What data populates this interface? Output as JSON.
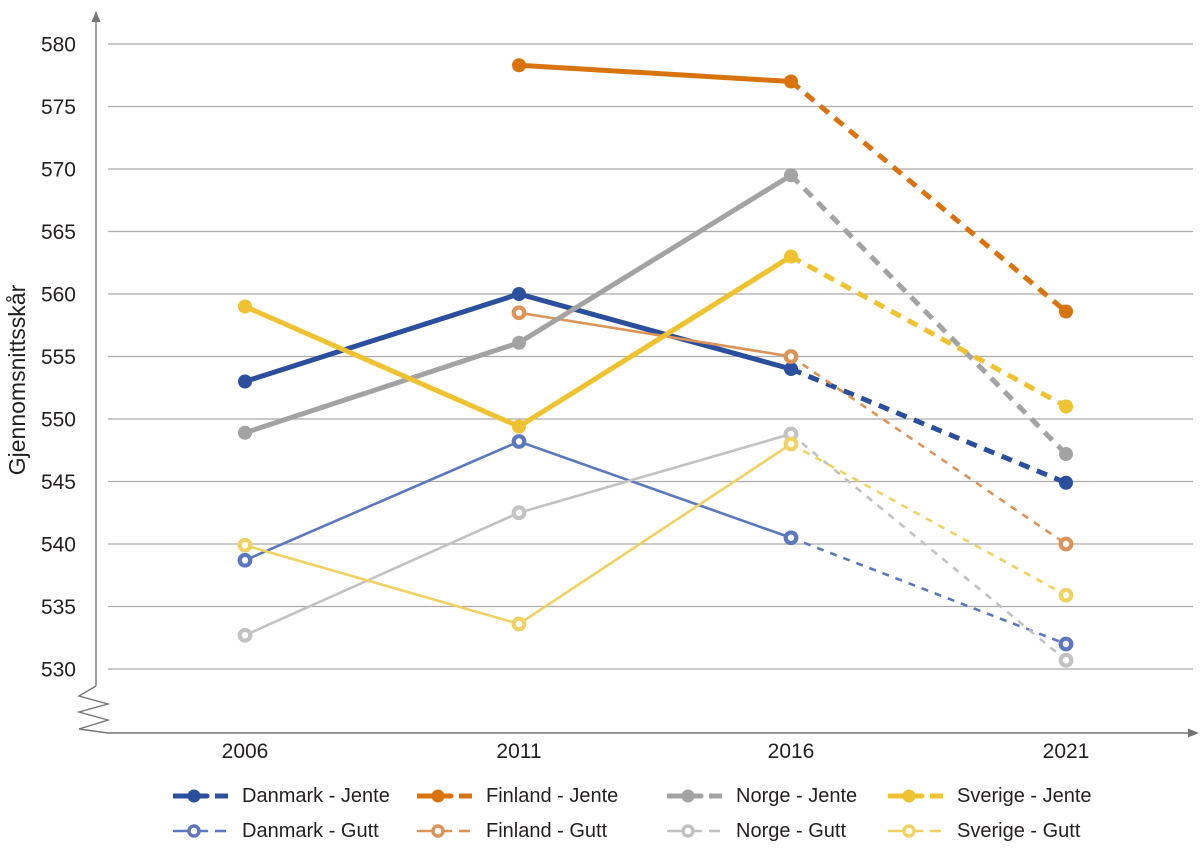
{
  "chart_data": {
    "type": "line",
    "ylabel": "Gjennomsnittsskår",
    "xlabel": "",
    "x": [
      "2006",
      "2011",
      "2016",
      "2021"
    ],
    "ylim": [
      530,
      580
    ],
    "yticks": [
      580,
      575,
      570,
      565,
      560,
      555,
      550,
      545,
      540,
      535,
      530
    ],
    "grid": true,
    "axis_break_bottom": true,
    "legend_position": "bottom",
    "dashed_segment": "2016-2021",
    "series": [
      {
        "name": "Danmark - Jente",
        "color": "#2B4F9C",
        "style": "thick",
        "marker": "filled",
        "values": [
          553.0,
          560.0,
          554.0,
          544.9
        ]
      },
      {
        "name": "Danmark - Gutt",
        "color": "#5B77BE",
        "style": "thin",
        "marker": "open",
        "values": [
          538.7,
          548.2,
          540.5,
          532.0
        ]
      },
      {
        "name": "Finland - Jente",
        "color": "#D9730D",
        "style": "thick",
        "marker": "filled",
        "values": [
          null,
          578.3,
          577.0,
          558.6
        ]
      },
      {
        "name": "Finland - Gutt",
        "color": "#DB9358",
        "style": "thin",
        "marker": "open",
        "values": [
          null,
          558.5,
          555.0,
          540.0
        ]
      },
      {
        "name": "Norge - Jente",
        "color": "#A3A3A3",
        "style": "thick",
        "marker": "filled",
        "values": [
          548.9,
          556.1,
          569.5,
          547.2
        ]
      },
      {
        "name": "Norge - Gutt",
        "color": "#C2C2C2",
        "style": "thin",
        "marker": "open",
        "values": [
          532.7,
          542.5,
          548.8,
          530.7
        ]
      },
      {
        "name": "Sverige - Jente",
        "color": "#EFC231",
        "style": "thick",
        "marker": "filled",
        "values": [
          559.0,
          549.4,
          563.0,
          551.0
        ]
      },
      {
        "name": "Sverige - Gutt",
        "color": "#F0D264",
        "style": "thin",
        "marker": "open",
        "values": [
          539.9,
          533.6,
          548.0,
          535.9
        ]
      }
    ],
    "colors": {
      "grid": "#ABABAB",
      "axis": "#757575",
      "text": "#231F20"
    }
  }
}
